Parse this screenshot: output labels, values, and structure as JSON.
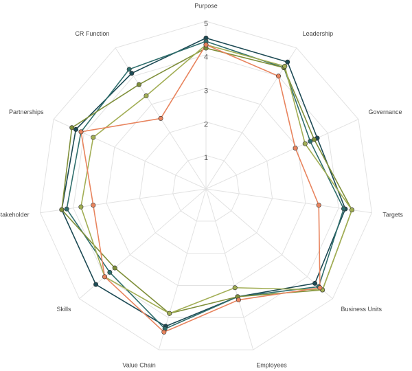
{
  "chart_data": {
    "type": "radar",
    "categories": [
      "Purpose",
      "Leadership",
      "Governance",
      "Targets",
      "Business Units",
      "Employees",
      "Value Chain",
      "Skills",
      "Stakeholder",
      "Partnerships",
      "CR Function"
    ],
    "ylim": [
      0,
      5
    ],
    "yticks": [
      1,
      2,
      3,
      4,
      5
    ],
    "grid": true,
    "series": [
      {
        "color": "#1d4a54",
        "values": [
          4.5,
          4.5,
          3.65,
          4.2,
          4.3,
          3.35,
          4.27,
          4.35,
          4.35,
          4.27,
          4.1
        ]
      },
      {
        "color": "#2f6e6c",
        "values": [
          4.4,
          4.3,
          3.42,
          4.15,
          4.45,
          3.35,
          4.35,
          3.8,
          4.2,
          4.1,
          4.24
        ]
      },
      {
        "color": "#7f8f3a",
        "values": [
          4.2,
          4.3,
          3.55,
          4.4,
          4.6,
          3.35,
          3.87,
          3.6,
          4.35,
          4.4,
          3.7
        ]
      },
      {
        "color": "#a2ae55",
        "values": [
          4.3,
          4.35,
          3.25,
          4.4,
          4.6,
          3.07,
          3.87,
          4.0,
          3.77,
          3.7,
          3.3
        ]
      },
      {
        "color": "#e8845e",
        "values": [
          4.3,
          4.0,
          2.93,
          3.4,
          4.5,
          3.45,
          4.45,
          4.0,
          3.4,
          4.1,
          2.5
        ]
      }
    ]
  }
}
